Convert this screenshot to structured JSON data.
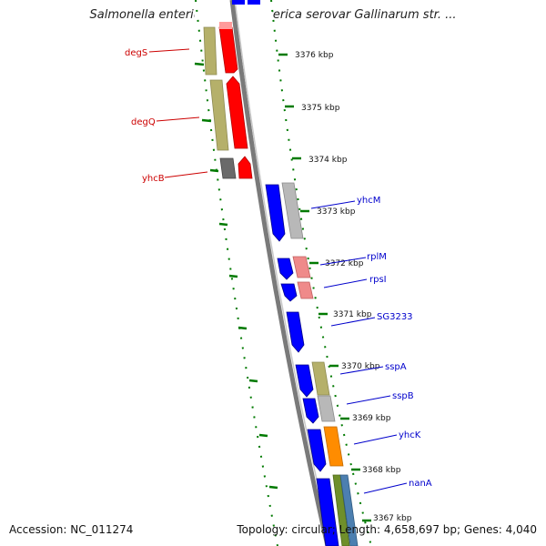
{
  "title": "Salmonella enterica subsp. enterica serovar Gallinarum str. ...",
  "footer": {
    "accession": "Accession: NC_011274",
    "summary": "Topology: circular; Length: 4,658,697 bp; Genes: 4,040"
  },
  "map": {
    "ticks": [
      {
        "label": "3376 kbp"
      },
      {
        "label": "3375 kbp"
      },
      {
        "label": "3374 kbp"
      },
      {
        "label": "3373 kbp"
      },
      {
        "label": "3372 kbp"
      },
      {
        "label": "3371 kbp"
      },
      {
        "label": "3370 kbp"
      },
      {
        "label": "3369 kbp"
      },
      {
        "label": "3368 kbp"
      },
      {
        "label": "3367 kbp"
      }
    ],
    "genes_left": [
      {
        "name": "degS",
        "color": "#cc0000"
      },
      {
        "name": "degQ",
        "color": "#cc0000"
      },
      {
        "name": "yhcB",
        "color": "#cc0000"
      }
    ],
    "genes_right": [
      {
        "name": "yhcM",
        "color": "#0000cc"
      },
      {
        "name": "rplM",
        "color": "#0000cc"
      },
      {
        "name": "rpsI",
        "color": "#0000cc"
      },
      {
        "name": "SG3233",
        "color": "#0000cc"
      },
      {
        "name": "sspA",
        "color": "#0000cc"
      },
      {
        "name": "sspB",
        "color": "#0000cc"
      },
      {
        "name": "yhcK",
        "color": "#0000cc"
      },
      {
        "name": "nanA",
        "color": "#0000cc"
      }
    ],
    "colors": {
      "cds_forward": "#ff0000",
      "cds_reverse": "#0000ff",
      "cog_olive": "#b5b06a",
      "cog_grey": "#b8b8b8",
      "cog_pink": "#ef8a8a",
      "cog_orange": "#ff8c00",
      "backbone": "#808080",
      "tick_green": "#007a00"
    }
  }
}
